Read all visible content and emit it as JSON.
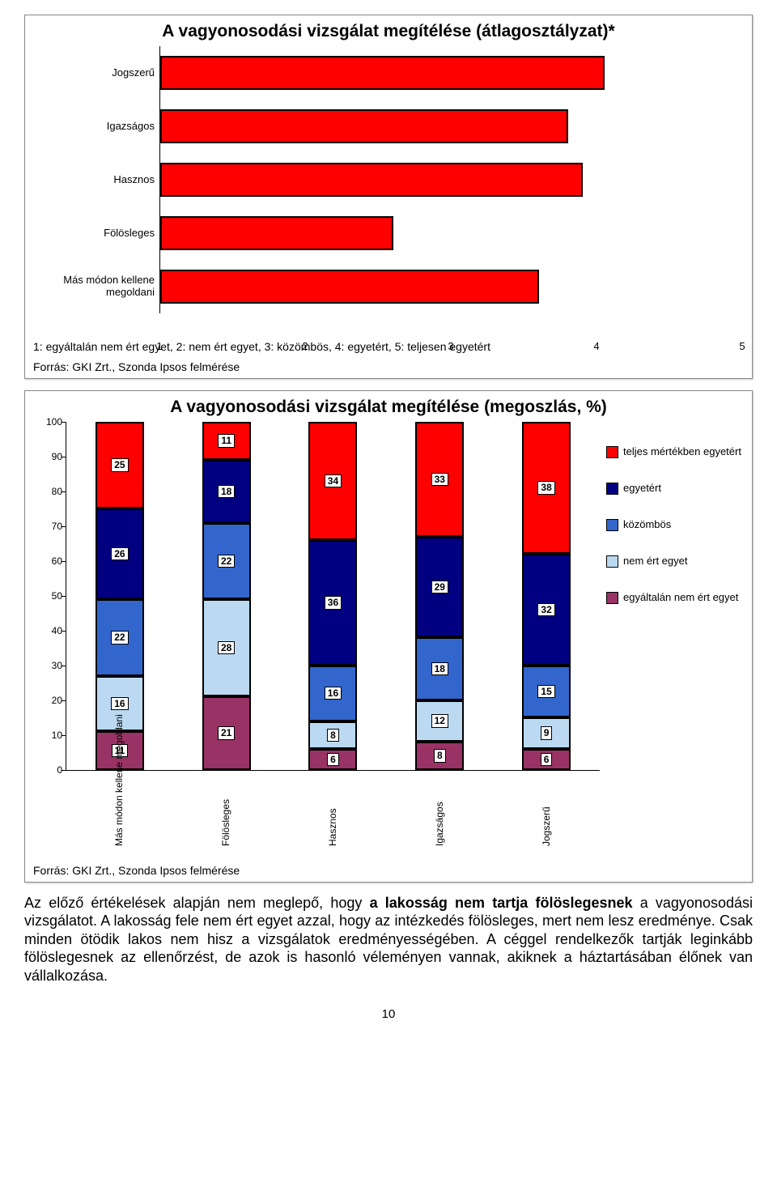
{
  "chart1": {
    "title": "A vagyonosodási vizsgálat megítélése (átlagosztályzat)*",
    "categories": [
      "Jogszerű",
      "Igazságos",
      "Hasznos",
      "Fölösleges",
      "Más módon kellene megoldani"
    ],
    "values": [
      4.05,
      3.8,
      3.9,
      2.6,
      3.6
    ],
    "xmin": 1,
    "xmax": 5,
    "xticks": [
      1,
      2,
      3,
      4,
      5
    ],
    "bar_color": "#ff0000",
    "caption_line1": "1: egyáltalán nem ért egyet, 2: nem ért egyet, 3: közömbös, 4: egyetért, 5: teljesen egyetért",
    "caption_line2": "Forrás: GKI Zrt., Szonda Ipsos felmérése"
  },
  "chart2": {
    "title": "A vagyonosodási vizsgálat megítélése (megoszlás, %)",
    "ymax": 100,
    "ytick_step": 10,
    "categories": [
      "Más módon kellene megoldani",
      "Fölösleges",
      "Hasznos",
      "Igazságos",
      "Jogszerű"
    ],
    "series": [
      {
        "name": "egyáltalán nem ért egyet",
        "color": "#993366"
      },
      {
        "name": "nem ért egyet",
        "color": "#bbdaf2"
      },
      {
        "name": "közömbös",
        "color": "#3366cc"
      },
      {
        "name": "egyetért",
        "color": "#000080"
      },
      {
        "name": "teljes mértékben egyetért",
        "color": "#ff0000"
      }
    ],
    "stacks": [
      {
        "gap": 0,
        "seg": [
          11,
          16,
          22,
          26,
          25
        ]
      },
      {
        "gap": 0,
        "seg": [
          21,
          28,
          22,
          18,
          11
        ]
      },
      {
        "gap": 0,
        "seg": [
          6,
          8,
          16,
          36,
          34
        ]
      },
      {
        "gap": 0,
        "seg": [
          8,
          12,
          18,
          29,
          33
        ]
      },
      {
        "gap": 0,
        "seg": [
          6,
          9,
          15,
          32,
          38
        ]
      }
    ],
    "source": "Forrás: GKI Zrt., Szonda Ipsos felmérése",
    "legend_order": [
      4,
      3,
      2,
      1,
      0
    ]
  },
  "body": {
    "p1_a": "Az előző értékelések alapján nem meglepő, hogy ",
    "p1_b": "a lakosság nem tartja fölöslegesnek",
    "p1_c": " a vagyonosodási vizsgálatot. A lakosság fele nem ért egyet azzal, hogy az intézkedés fölösleges, mert nem lesz eredménye. Csak minden ötödik lakos nem hisz a vizsgálatok eredményességében. A céggel rendelkezők tartják leginkább fölöslegesnek az ellenőrzést, de azok is hasonló véleményen vannak, akiknek a háztartásában élőnek van vállalkozása."
  },
  "page_number": "10"
}
